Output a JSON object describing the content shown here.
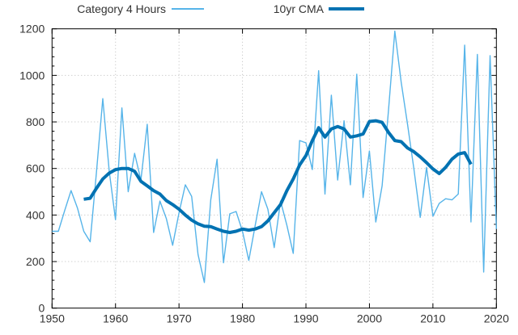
{
  "chart_data": {
    "type": "line",
    "title": "",
    "xlabel": "",
    "ylabel": "",
    "xlim": [
      1950,
      2020
    ],
    "ylim": [
      0,
      1200
    ],
    "x_ticks": [
      1950,
      1960,
      1970,
      1980,
      1990,
      2000,
      2010,
      2020
    ],
    "y_ticks": [
      0,
      200,
      400,
      600,
      800,
      1000,
      1200
    ],
    "y_minor_step": 40,
    "grid": true,
    "grid_color": "#bbbbbb",
    "axis_color": "#000000",
    "text_color": "#333333",
    "legend_position": "top",
    "series": [
      {
        "name": "Category 4 Hours",
        "color": "#56B4E9",
        "width": 1.4,
        "start_year": 1950,
        "values": [
          330,
          330,
          420,
          505,
          430,
          330,
          285,
          585,
          900,
          590,
          380,
          860,
          500,
          665,
          550,
          790,
          325,
          460,
          385,
          270,
          410,
          530,
          480,
          230,
          110,
          465,
          640,
          195,
          405,
          415,
          330,
          205,
          355,
          500,
          425,
          260,
          460,
          355,
          235,
          720,
          710,
          595,
          1020,
          490,
          915,
          550,
          805,
          530,
          1005,
          475,
          675,
          370,
          525,
          850,
          1190,
          970,
          790,
          600,
          390,
          605,
          395,
          450,
          470,
          465,
          490,
          1130,
          370,
          1090,
          155,
          1085,
          340
        ]
      },
      {
        "name": "10yr CMA",
        "color": "#0072B2",
        "width": 4,
        "start_year": 1955,
        "values": [
          468,
          472,
          515,
          555,
          580,
          595,
          600,
          600,
          588,
          545,
          525,
          505,
          490,
          462,
          445,
          425,
          400,
          378,
          362,
          352,
          350,
          340,
          330,
          325,
          330,
          340,
          335,
          340,
          350,
          375,
          410,
          445,
          505,
          555,
          615,
          655,
          720,
          775,
          735,
          770,
          780,
          770,
          735,
          740,
          748,
          802,
          805,
          798,
          755,
          720,
          715,
          688,
          672,
          650,
          625,
          598,
          578,
          605,
          640,
          662,
          668,
          618
        ]
      }
    ]
  }
}
